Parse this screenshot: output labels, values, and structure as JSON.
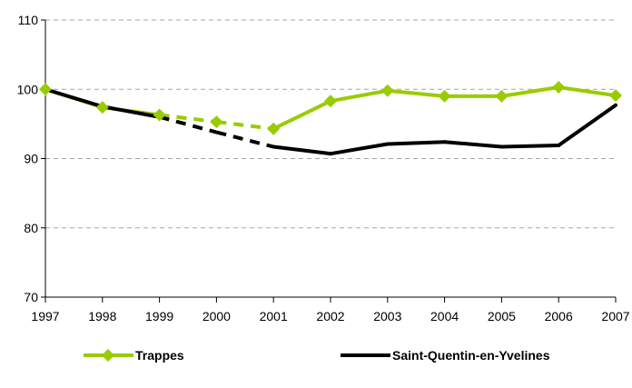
{
  "chart_data": {
    "type": "line",
    "title": "",
    "xlabel": "",
    "ylabel": "",
    "x": [
      "1997",
      "1998",
      "1999",
      "2000",
      "2001",
      "2002",
      "2003",
      "2004",
      "2005",
      "2006",
      "2007"
    ],
    "ylim": [
      70,
      110
    ],
    "yticks": [
      "70",
      "80",
      "90",
      "100",
      "110"
    ],
    "grid": "horizontal-dashed",
    "legend": "bottom",
    "series": [
      {
        "name": "Trappes",
        "color": "#99cc00",
        "marker": "diamond",
        "values": [
          100,
          97.4,
          96.3,
          95.3,
          94.3,
          98.3,
          99.8,
          99.0,
          99.0,
          100.3,
          99.1
        ],
        "dashed_segments": [
          [
            1999,
            2001
          ]
        ]
      },
      {
        "name": "Saint-Quentin-en-Yvelines",
        "color": "#000000",
        "marker": "none",
        "values": [
          100,
          97.5,
          96.0,
          93.8,
          91.7,
          90.7,
          92.1,
          92.4,
          91.7,
          91.9,
          97.7
        ],
        "dashed_segments": [
          [
            1999,
            2001
          ]
        ]
      }
    ]
  }
}
